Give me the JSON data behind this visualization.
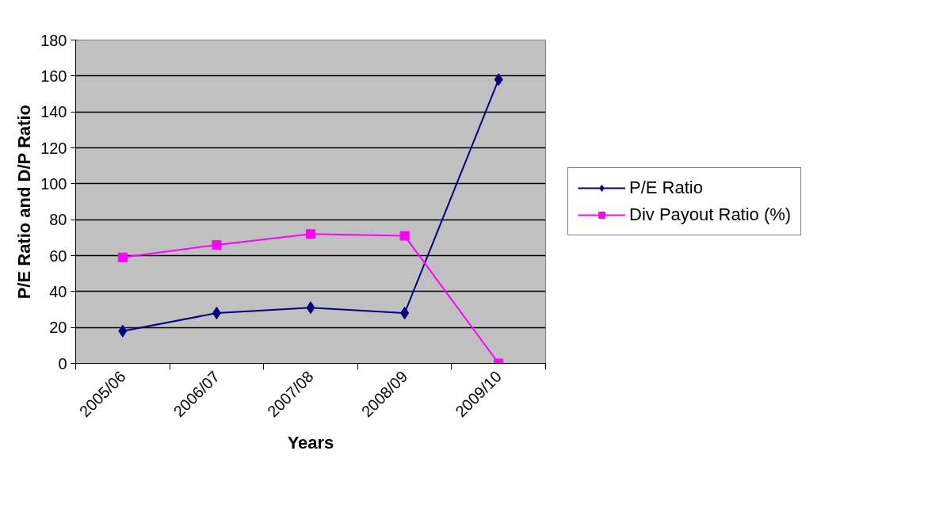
{
  "chart_data": {
    "type": "line",
    "xlabel": "Years",
    "ylabel": "P/E Ratio and D/P Ratio",
    "categories": [
      "2005/06",
      "2006/07",
      "2007/08",
      "2008/09",
      "2009/10"
    ],
    "series": [
      {
        "name": "P/E Ratio",
        "color": "#000080",
        "marker": "diamond",
        "values": [
          18,
          28,
          31,
          28,
          158
        ]
      },
      {
        "name": "Div Payout Ratio (%)",
        "color": "#ff00ff",
        "marker": "square",
        "values": [
          59,
          66,
          72,
          71,
          0
        ]
      }
    ],
    "ylim": [
      0,
      180
    ],
    "yticks": [
      0,
      20,
      40,
      60,
      80,
      100,
      120,
      140,
      160,
      180
    ],
    "grid": "y",
    "legend": "right"
  }
}
